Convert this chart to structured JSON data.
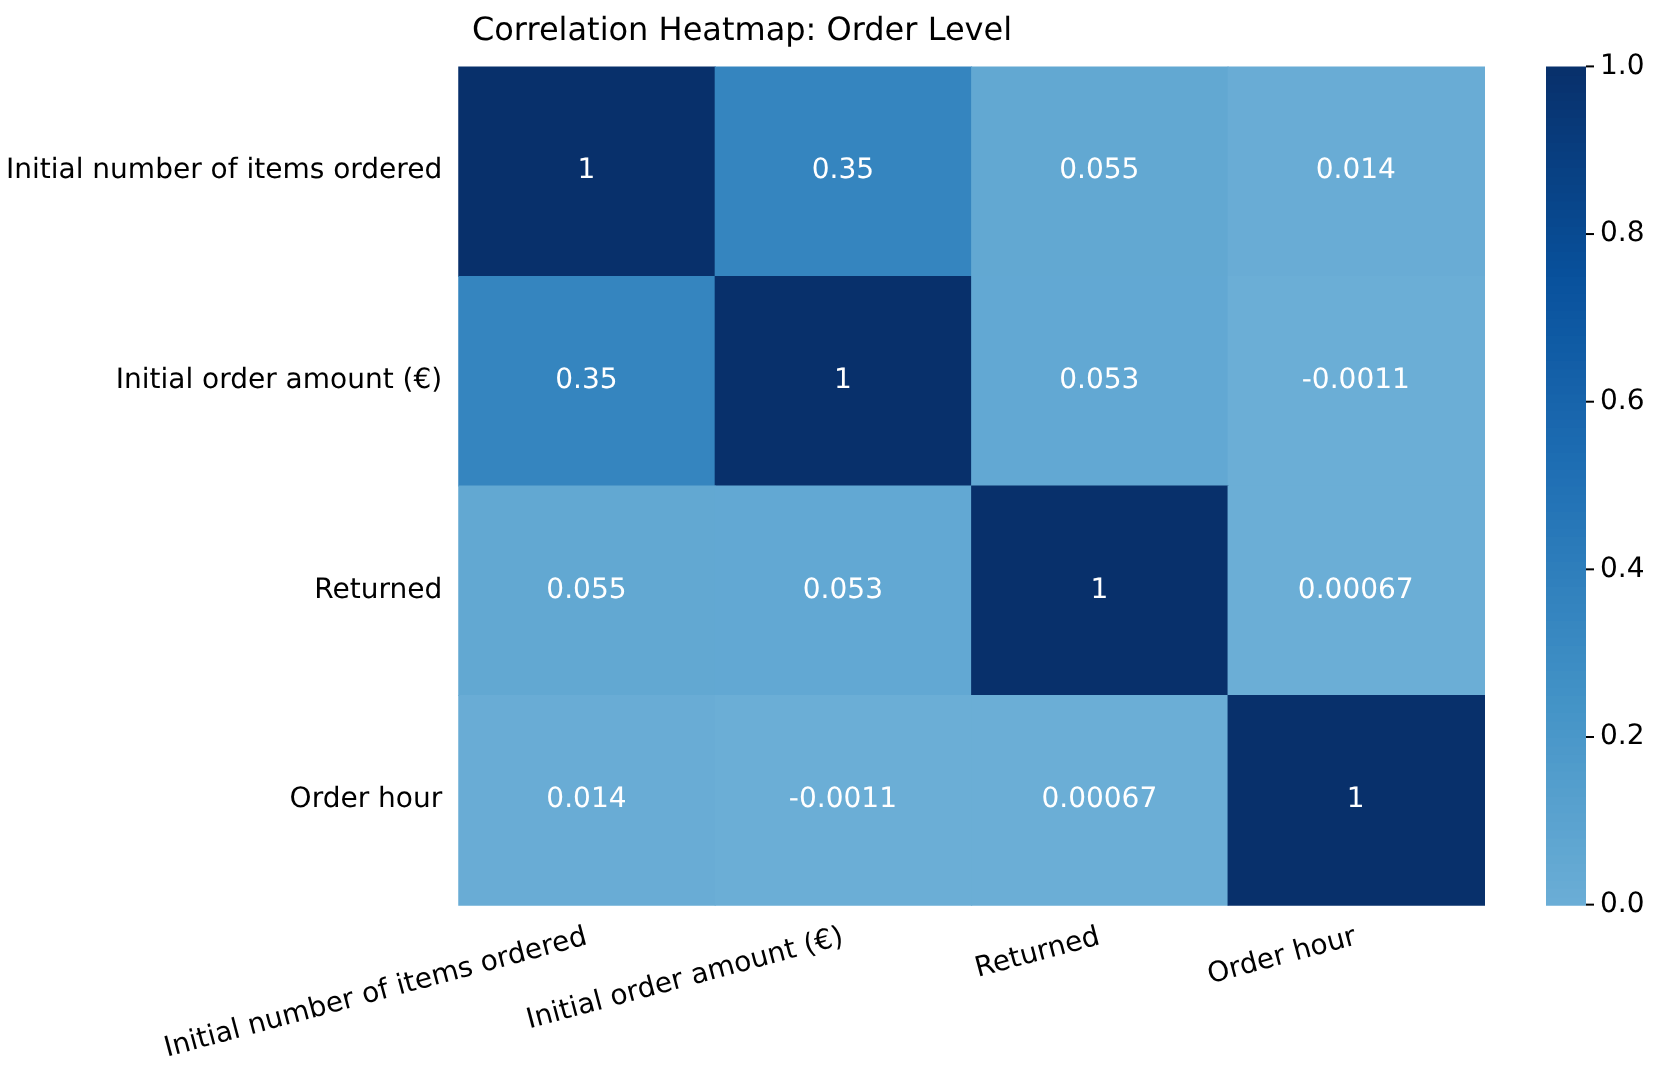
{
  "chart_data": {
    "type": "heatmap",
    "title": "Correlation Heatmap: Order Level",
    "categories": [
      "Initial number of items ordered",
      "Initial order amount (€)",
      "Returned",
      "Order hour"
    ],
    "y_categories": [
      "Initial number of items ordered",
      "Initial order amount (€)",
      "Returned",
      "Order hour"
    ],
    "cells": [
      [
        1,
        0.35,
        0.055,
        0.014
      ],
      [
        0.35,
        1,
        0.053,
        -0.0011
      ],
      [
        0.055,
        0.053,
        1,
        0.00067
      ],
      [
        0.014,
        -0.0011,
        0.00067,
        1
      ]
    ],
    "data_labels": true,
    "clim": [
      0,
      1
    ],
    "cticks": [
      {
        "value": 0,
        "label": "0.0"
      },
      {
        "value": 0.2,
        "label": "0.2"
      },
      {
        "value": 0.4,
        "label": "0.4"
      },
      {
        "value": 0.6,
        "label": "0.6"
      },
      {
        "value": 0.8,
        "label": "0.8"
      },
      {
        "value": 1,
        "label": "1.0"
      }
    ]
  }
}
